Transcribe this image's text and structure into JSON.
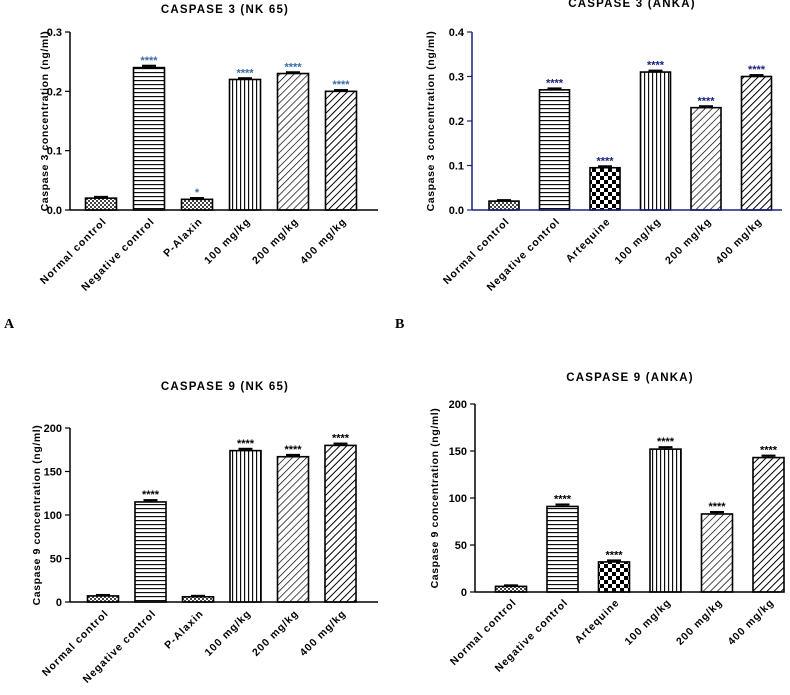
{
  "panel_labels": [
    "A",
    "B"
  ],
  "chart_data": [
    {
      "type": "bar",
      "title": "CASPASE 3 (NK 65)",
      "xlabel": "",
      "ylabel": "Caspase 3 concentration (ng/ml)",
      "ylim": [
        0,
        0.3
      ],
      "yticks": [
        "0.0",
        "0.1",
        "0.2",
        "0.3"
      ],
      "categories": [
        "Normal control",
        "Negative control",
        "P-Alaxin",
        "100 mg/kg",
        "200 mg/kg",
        "400 mg/kg"
      ],
      "values": [
        0.02,
        0.24,
        0.018,
        0.22,
        0.23,
        0.2
      ],
      "errors": [
        0.002,
        0.003,
        0.002,
        0.002,
        0.002,
        0.002
      ],
      "annotations": [
        "",
        "****",
        "*",
        "****",
        "****",
        "****"
      ],
      "annotation_color": "#3a6aa8",
      "patterns": [
        "check",
        "hline",
        "check",
        "vline",
        "diag",
        "diag2"
      ]
    },
    {
      "type": "bar",
      "title": "CASPASE 3 (ANKA)",
      "xlabel": "",
      "ylabel": "Caspase 3 concentration (ng/ml)",
      "ylim": [
        0,
        0.4
      ],
      "yticks": [
        "0.0",
        "0.1",
        "0.2",
        "0.3",
        "0.4"
      ],
      "categories": [
        "Normal control",
        "Negative control",
        "Artequine",
        "100 mg/kg",
        "200 mg/kg",
        "400 mg/kg"
      ],
      "values": [
        0.02,
        0.27,
        0.095,
        0.31,
        0.23,
        0.3
      ],
      "errors": [
        0.002,
        0.003,
        0.003,
        0.003,
        0.003,
        0.003
      ],
      "annotations": [
        "",
        "****",
        "****",
        "****",
        "****",
        "****"
      ],
      "annotation_color": "#1a237e",
      "axis_color": "#1a237e",
      "patterns": [
        "check",
        "hline",
        "bigcheck",
        "vline",
        "diag",
        "diag2"
      ]
    },
    {
      "type": "bar",
      "title": "CASPASE 9 (NK 65)",
      "xlabel": "",
      "ylabel": "Caspase 9 concentration (ng/ml)",
      "ylim": [
        0,
        200
      ],
      "yticks": [
        "0",
        "50",
        "100",
        "150",
        "200"
      ],
      "categories": [
        "Normal control",
        "Negative control",
        "P-Alaxin",
        "100 mg/kg",
        "200 mg/kg",
        "400 mg/kg"
      ],
      "values": [
        7,
        115,
        6,
        174,
        167,
        180
      ],
      "errors": [
        1,
        2,
        1,
        2,
        2,
        2
      ],
      "annotations": [
        "",
        "****",
        "",
        "****",
        "****",
        "****"
      ],
      "annotation_color": "#000000",
      "patterns": [
        "check",
        "hline",
        "check",
        "vline",
        "diag",
        "diag2"
      ]
    },
    {
      "type": "bar",
      "title": "CASPASE 9 (ANKA)",
      "xlabel": "",
      "ylabel": "Caspase 9 concentration (ng/ml)",
      "ylim": [
        0,
        200
      ],
      "yticks": [
        "0",
        "50",
        "100",
        "150",
        "200"
      ],
      "categories": [
        "Normal control",
        "Negative control",
        "Artequine",
        "100 mg/kg",
        "200 mg/kg",
        "400 mg/kg"
      ],
      "values": [
        6,
        91,
        32,
        152,
        83,
        143
      ],
      "errors": [
        1,
        2,
        1.5,
        2,
        2,
        2
      ],
      "annotations": [
        "",
        "****",
        "****",
        "****",
        "****",
        "****"
      ],
      "annotation_color": "#000000",
      "patterns": [
        "check",
        "hline",
        "bigcheck",
        "vline",
        "diag",
        "diag2"
      ]
    }
  ]
}
